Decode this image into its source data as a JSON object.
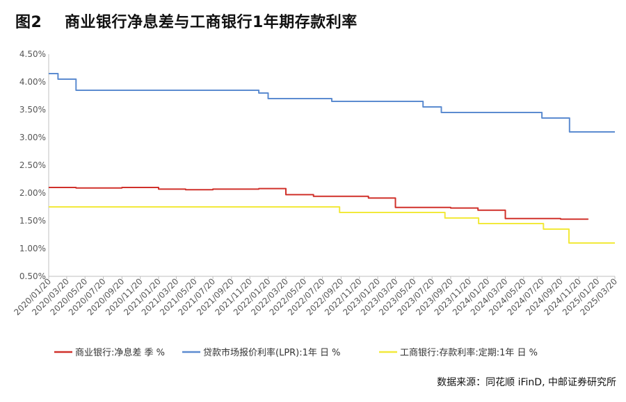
{
  "title": "图2    商业银行净息差与工商银行1年期存款利率",
  "source": "数据来源：同花顺 iFinD, 中邮证券研究所",
  "colors": {
    "nim": "#D0302A",
    "lpr": "#5B8BD0",
    "deposit": "#F2E93A",
    "axis": "#BFBFBF",
    "text": "#555555"
  },
  "chart_data": {
    "type": "line",
    "title": "",
    "xlabel": "",
    "ylabel": "",
    "ylim": [
      0.5,
      4.5
    ],
    "yticks": [
      "0.50%",
      "1.00%",
      "1.50%",
      "2.00%",
      "2.50%",
      "3.00%",
      "3.50%",
      "4.00%",
      "4.50%"
    ],
    "xlim": [
      "2020/01/20",
      "2025/03/20"
    ],
    "xticks": [
      "2020/01/20",
      "2020/03/20",
      "2020/05/20",
      "2020/07/20",
      "2020/09/20",
      "2020/11/20",
      "2021/01/20",
      "2021/03/20",
      "2021/05/20",
      "2021/07/20",
      "2021/09/20",
      "2021/11/20",
      "2022/01/20",
      "2022/03/20",
      "2022/05/20",
      "2022/07/20",
      "2022/09/20",
      "2022/11/20",
      "2023/01/20",
      "2023/03/20",
      "2023/05/20",
      "2023/07/20",
      "2023/09/20",
      "2023/11/20",
      "2024/01/20",
      "2024/03/20",
      "2024/05/20",
      "2024/07/20",
      "2024/09/20",
      "2024/11/20",
      "2025/01/20",
      "2025/03/20"
    ],
    "grid": false,
    "legend": "bottom",
    "series": [
      {
        "name": "商业银行:净息差 季 %",
        "color_key": "nim",
        "step": true,
        "x": [
          "2020/01/20",
          "2020/04/20",
          "2020/09/20",
          "2020/12/20",
          "2021/01/20",
          "2021/04/20",
          "2021/07/20",
          "2021/09/20",
          "2021/12/20",
          "2022/03/20",
          "2022/06/20",
          "2022/09/20",
          "2022/12/20",
          "2023/03/20",
          "2023/06/20",
          "2023/09/20",
          "2023/12/20",
          "2024/03/20",
          "2024/06/20",
          "2024/09/20",
          "2024/12/20"
        ],
        "y": [
          2.1,
          2.09,
          2.1,
          2.1,
          2.07,
          2.06,
          2.07,
          2.07,
          2.08,
          1.97,
          1.94,
          1.94,
          1.91,
          1.74,
          1.74,
          1.73,
          1.69,
          1.54,
          1.54,
          1.53,
          1.52
        ]
      },
      {
        "name": "贷款市场报价利率(LPR):1年 日 %",
        "color_key": "lpr",
        "step": true,
        "x": [
          "2020/01/20",
          "2020/02/20",
          "2020/04/20",
          "2021/11/20",
          "2021/12/20",
          "2022/01/20",
          "2022/08/20",
          "2023/06/20",
          "2023/08/20",
          "2024/07/20",
          "2024/10/20",
          "2025/03/20"
        ],
        "y": [
          4.15,
          4.05,
          3.85,
          3.85,
          3.8,
          3.7,
          3.65,
          3.55,
          3.45,
          3.35,
          3.1,
          3.1
        ]
      },
      {
        "name": "工商银行:存款利率:定期:1年 日 %",
        "color_key": "deposit",
        "step": true,
        "x": [
          "2020/01/20",
          "2022/09/15",
          "2023/06/08",
          "2023/09/01",
          "2023/12/22",
          "2024/07/25",
          "2024/10/18",
          "2025/03/20"
        ],
        "y": [
          1.75,
          1.65,
          1.65,
          1.55,
          1.45,
          1.35,
          1.1,
          1.1
        ]
      }
    ]
  }
}
